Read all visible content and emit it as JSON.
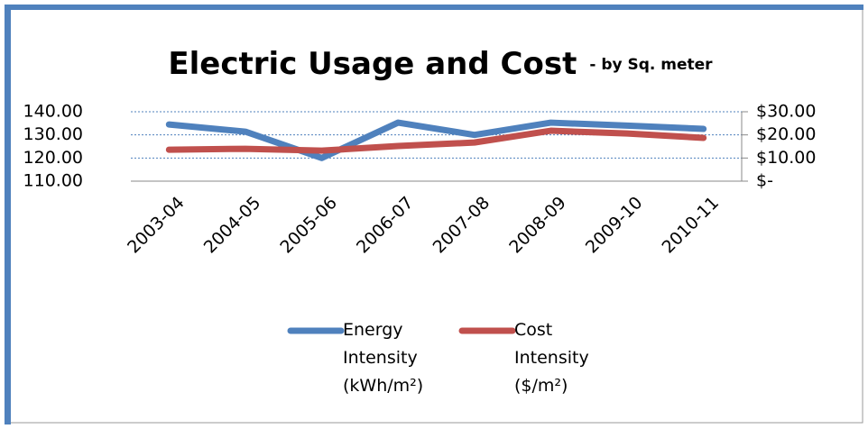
{
  "chart_data": {
    "type": "line",
    "title": "Electric Usage and Cost",
    "subtitle": "- by Sq. meter",
    "categories": [
      "2003-04",
      "2004-05",
      "2005-06",
      "2006-07",
      "2007-08",
      "2008-09",
      "2009-10",
      "2010-11"
    ],
    "series": [
      {
        "name": "Energy Intensity (kWh/m²)",
        "color": "#4f81bd",
        "values": [
          134.5,
          131.4,
          120,
          135.3,
          130,
          135.3,
          134,
          132.6
        ]
      },
      {
        "name": "Cost Intensity ($/m²)",
        "color": "#c0504d",
        "axis": "y2",
        "values": [
          13.6,
          14,
          13.2,
          15.2,
          16.7,
          21.8,
          20.6,
          18.7
        ]
      }
    ],
    "ylim": [
      110,
      140
    ],
    "yticks": [
      {
        "value": 110,
        "label": "110.00"
      },
      {
        "value": 120,
        "label": "120.00"
      },
      {
        "value": 130,
        "label": "130.00"
      },
      {
        "value": 140,
        "label": "140.00"
      }
    ],
    "y2lim": [
      0,
      30
    ],
    "y2ticks": [
      {
        "value": 0,
        "label": "$-"
      },
      {
        "value": 10,
        "label": "$10.00"
      },
      {
        "value": 20,
        "label": "$20.00"
      },
      {
        "value": 30,
        "label": "$30.00"
      }
    ],
    "grid": true,
    "legend": "bottom"
  }
}
